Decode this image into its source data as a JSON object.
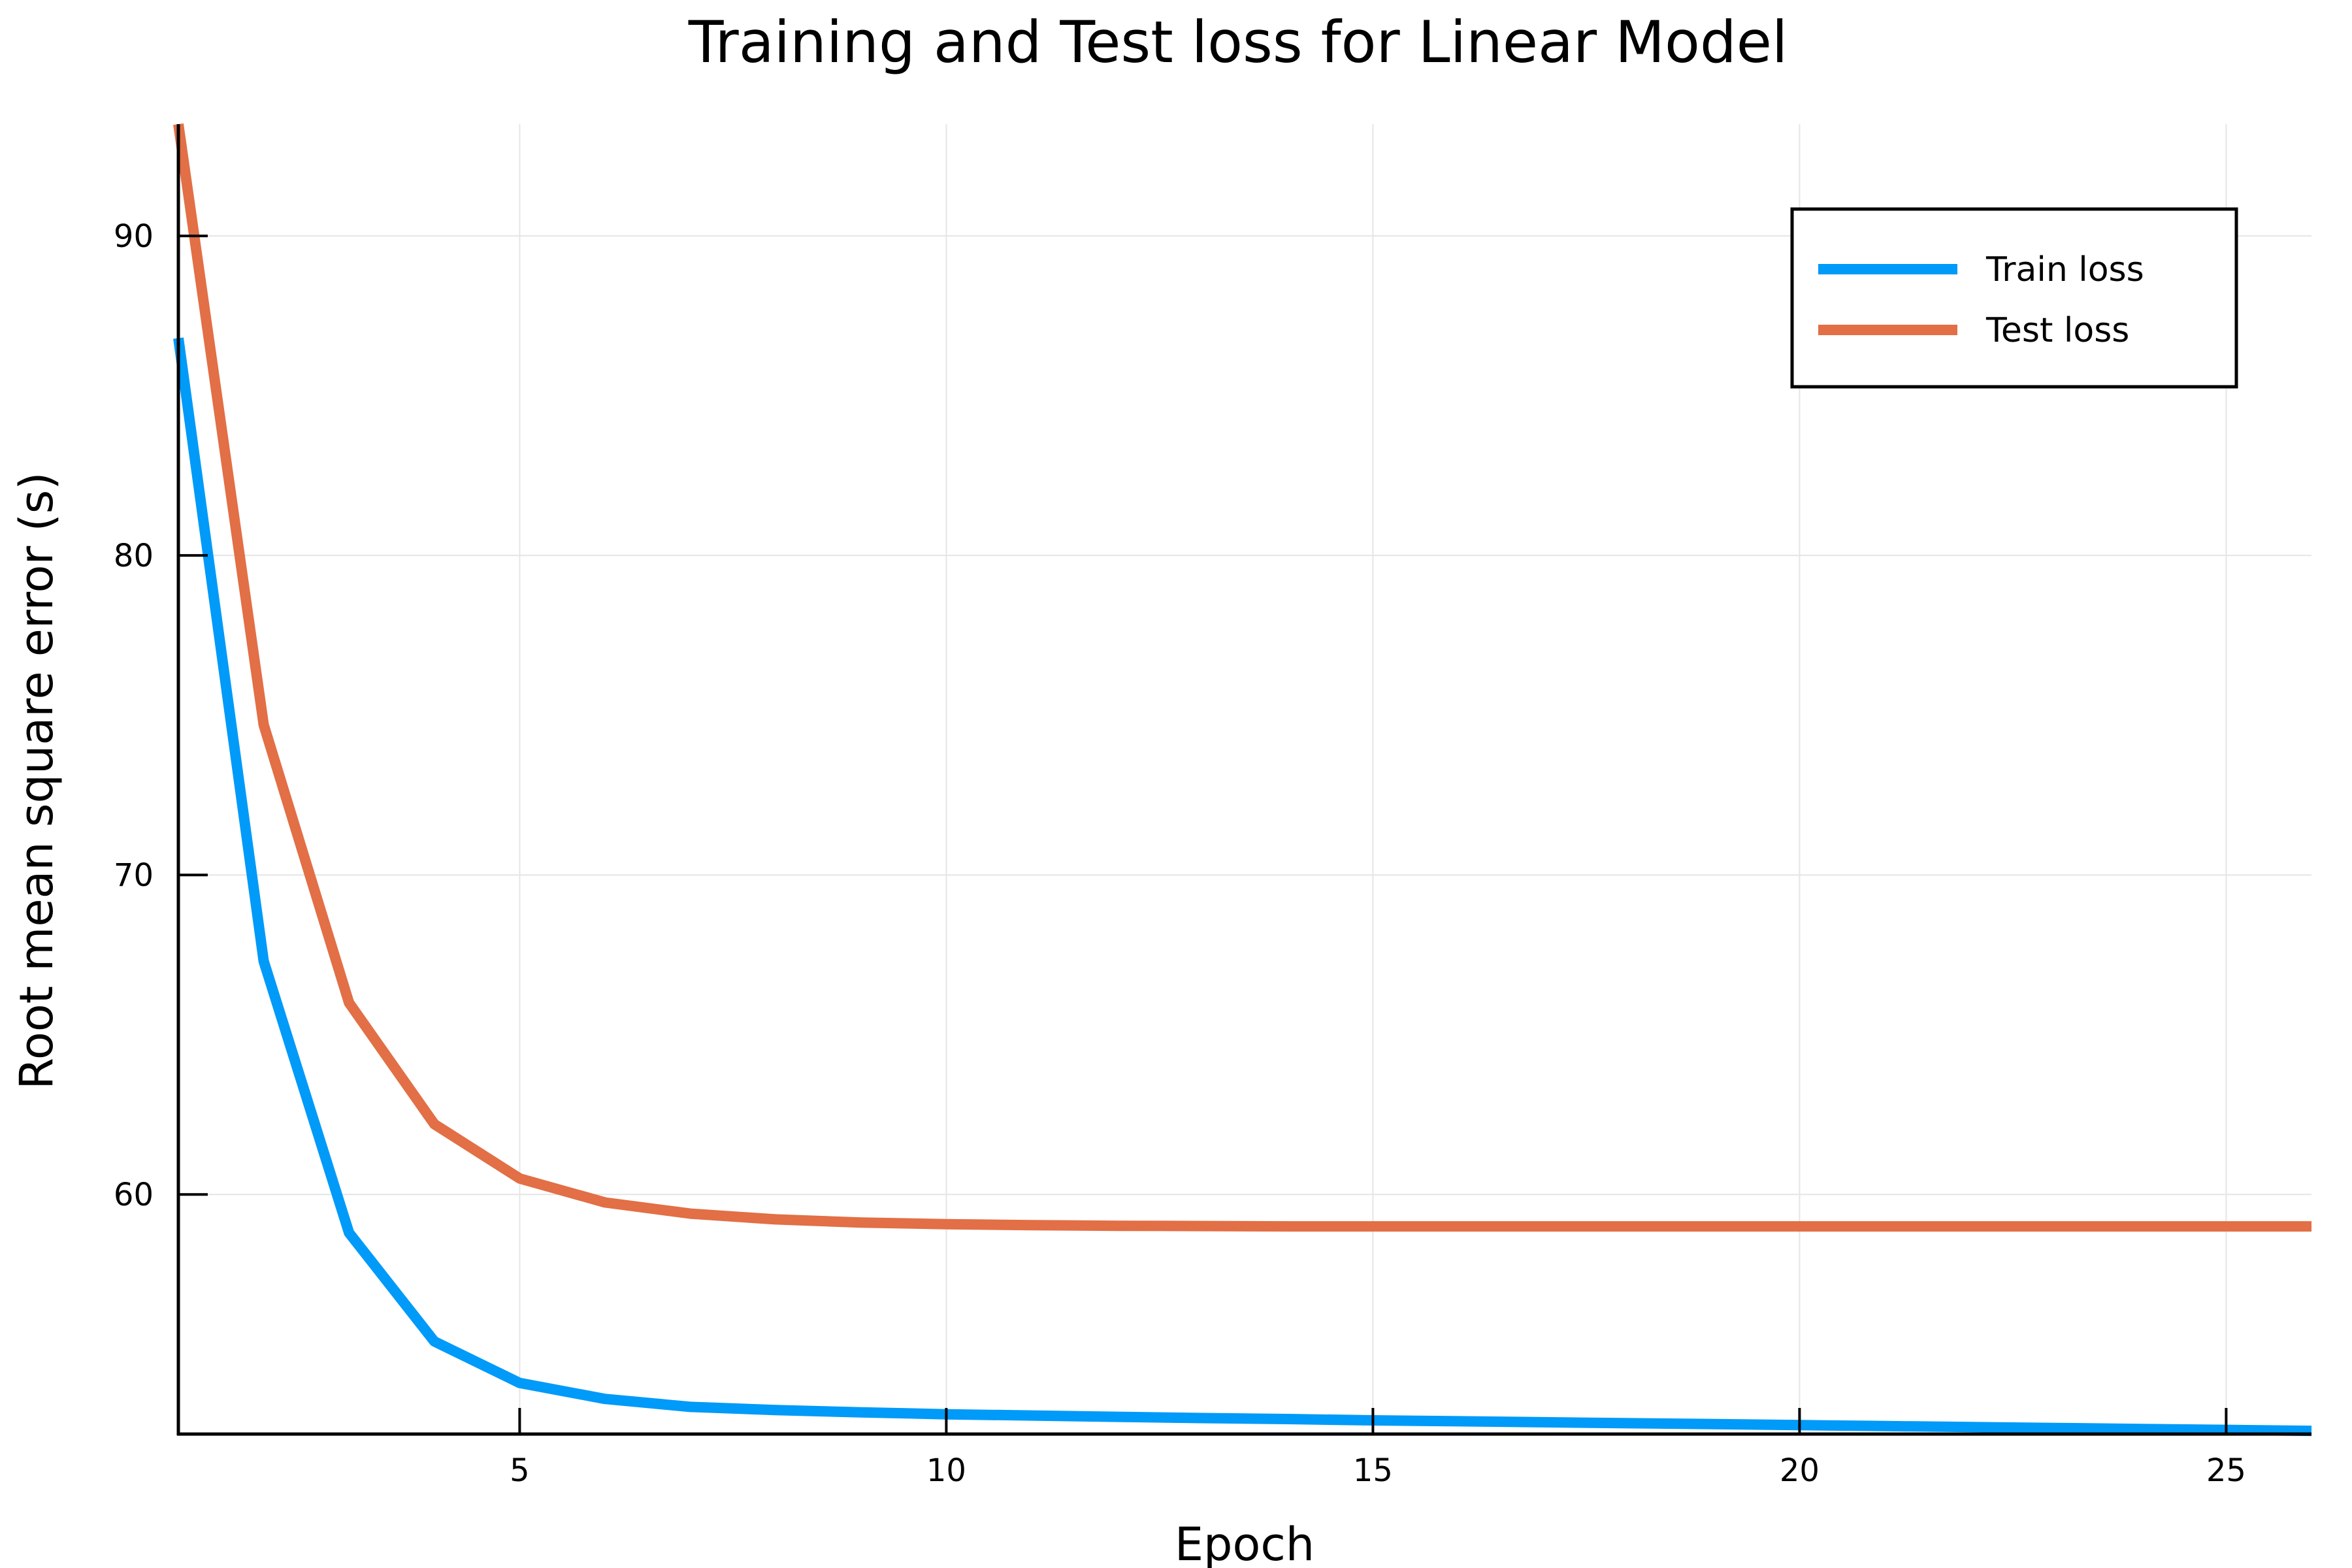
{
  "chart_data": {
    "type": "line",
    "title": "Training and Test loss for Linear Model",
    "xlabel": "Epoch",
    "ylabel": "Root mean square error (s)",
    "xlim": [
      1,
      26
    ],
    "ylim": [
      52.5,
      93.5
    ],
    "xticks": [
      5,
      10,
      15,
      20,
      25
    ],
    "yticks": [
      60,
      70,
      80,
      90
    ],
    "grid": true,
    "legend_position": "top-right",
    "x": [
      1,
      2,
      3,
      4,
      5,
      6,
      7,
      8,
      9,
      10,
      11,
      12,
      13,
      14,
      15,
      16,
      17,
      18,
      19,
      20,
      21,
      22,
      23,
      24,
      25,
      26
    ],
    "series": [
      {
        "name": "Train loss",
        "color": "#009af9",
        "values": [
          86.8,
          67.3,
          58.8,
          55.4,
          54.1,
          53.6,
          53.35,
          53.25,
          53.18,
          53.12,
          53.08,
          53.04,
          53.0,
          52.97,
          52.93,
          52.9,
          52.87,
          52.84,
          52.81,
          52.78,
          52.75,
          52.72,
          52.69,
          52.66,
          52.63,
          52.6
        ]
      },
      {
        "name": "Test loss",
        "color": "#e26f46",
        "values": [
          93.5,
          74.7,
          66.0,
          62.2,
          60.5,
          59.75,
          59.4,
          59.22,
          59.12,
          59.07,
          59.04,
          59.02,
          59.01,
          59.0,
          59.0,
          59.0,
          59.0,
          59.0,
          59.0,
          59.0,
          59.0,
          59.0,
          59.0,
          59.0,
          59.0,
          59.0
        ]
      }
    ]
  }
}
